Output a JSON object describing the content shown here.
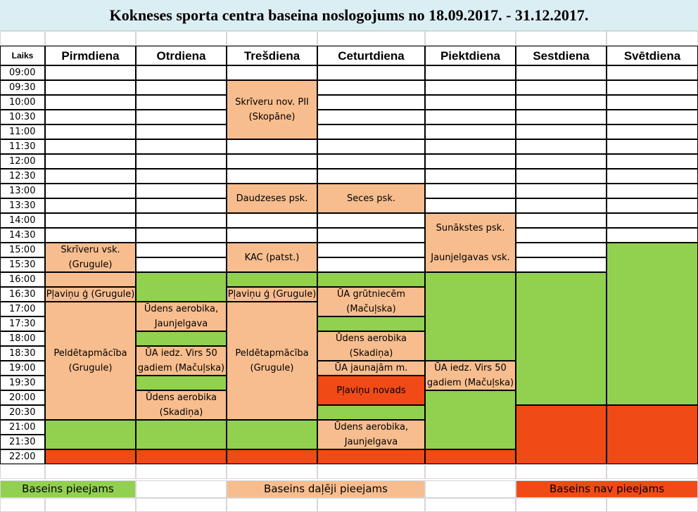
{
  "title": "Kokneses sporta centra baseina noslogojums no 18.09.2017. - 31.12.2017.",
  "colors": {
    "available": "#92d050",
    "partial": "#f8bd8e",
    "unavailable": "#f04a16",
    "title_bg": "#dbeef3"
  },
  "header": {
    "time_label": "Laiks",
    "days": [
      "Pirmdiena",
      "Otrdiena",
      "Trešdiena",
      "Ceturtdiena",
      "Piektdiena",
      "Sestdiena",
      "Svētdiena"
    ]
  },
  "times": [
    "09:00",
    "09:30",
    "10:00",
    "10:30",
    "11:00",
    "11:30",
    "12:00",
    "12:30",
    "13:00",
    "13:30",
    "14:00",
    "14:30",
    "15:00",
    "15:30",
    "16:00",
    "16:30",
    "17:00",
    "17:30",
    "18:00",
    "18:30",
    "19:00",
    "19:30",
    "20:00",
    "20:30",
    "21:00",
    "21:30",
    "22:00"
  ],
  "events": {
    "mon": [
      {
        "start": 12,
        "span": 2,
        "status": "partial",
        "text": "Skrīveru vsk.\n(Grugule)"
      },
      {
        "start": 14,
        "span": 1,
        "status": "partial",
        "text": ""
      },
      {
        "start": 15,
        "span": 1,
        "status": "partial",
        "text": "Pļaviņu ģ (Grugule)"
      },
      {
        "start": 16,
        "span": 8,
        "status": "partial",
        "text": "Peldētapmācība\n(Grugule)"
      },
      {
        "start": 24,
        "span": 2,
        "status": "available",
        "text": ""
      },
      {
        "start": 26,
        "span": 1,
        "status": "unavailable",
        "text": ""
      }
    ],
    "tue": [
      {
        "start": 14,
        "span": 2,
        "status": "available",
        "text": ""
      },
      {
        "start": 16,
        "span": 2,
        "status": "partial",
        "text": "Ūdens aerobika,\nJaunjelgava"
      },
      {
        "start": 18,
        "span": 1,
        "status": "available",
        "text": ""
      },
      {
        "start": 19,
        "span": 2,
        "status": "partial",
        "text": "ŪA iedz. Virs 50\ngadiem (Mačuļska)"
      },
      {
        "start": 21,
        "span": 1,
        "status": "available",
        "text": ""
      },
      {
        "start": 22,
        "span": 2,
        "status": "partial",
        "text": "Ūdens aerobika\n(Skadiņa)"
      },
      {
        "start": 24,
        "span": 2,
        "status": "available",
        "text": ""
      },
      {
        "start": 26,
        "span": 1,
        "status": "unavailable",
        "text": ""
      }
    ],
    "wed": [
      {
        "start": 1,
        "span": 4,
        "status": "partial",
        "text": "Skrīveru nov. PII\n(Skopāne)"
      },
      {
        "start": 8,
        "span": 2,
        "status": "partial",
        "text": "Daudzeses psk."
      },
      {
        "start": 12,
        "span": 2,
        "status": "partial",
        "text": "KAC (patst.)"
      },
      {
        "start": 14,
        "span": 1,
        "status": "available",
        "text": ""
      },
      {
        "start": 15,
        "span": 1,
        "status": "partial",
        "text": "Pļaviņu ģ (Grugule)"
      },
      {
        "start": 16,
        "span": 8,
        "status": "partial",
        "text": "Peldētapmācība\n(Grugule)"
      },
      {
        "start": 24,
        "span": 2,
        "status": "available",
        "text": ""
      },
      {
        "start": 26,
        "span": 1,
        "status": "unavailable",
        "text": ""
      }
    ],
    "thu": [
      {
        "start": 8,
        "span": 2,
        "status": "partial",
        "text": "Seces psk."
      },
      {
        "start": 14,
        "span": 1,
        "status": "available",
        "text": ""
      },
      {
        "start": 15,
        "span": 2,
        "status": "partial",
        "text": "ŪA grūtniecēm\n(Mačuļska)"
      },
      {
        "start": 17,
        "span": 1,
        "status": "available",
        "text": ""
      },
      {
        "start": 18,
        "span": 2,
        "status": "partial",
        "text": "Ūdens aerobika\n(Skadiņa)"
      },
      {
        "start": 20,
        "span": 1,
        "status": "partial",
        "text": "ŪA jaunajām m."
      },
      {
        "start": 21,
        "span": 2,
        "status": "unavailable",
        "text": "Pļaviņu novads"
      },
      {
        "start": 23,
        "span": 1,
        "status": "available",
        "text": ""
      },
      {
        "start": 24,
        "span": 2,
        "status": "partial",
        "text": "Ūdens aerobika,\nJaunjelgava"
      },
      {
        "start": 26,
        "span": 1,
        "status": "unavailable",
        "text": ""
      }
    ],
    "fri": [
      {
        "start": 10,
        "span": 4,
        "status": "partial",
        "text": "Sunākstes psk.\n\nJaunjelgavas vsk."
      },
      {
        "start": 14,
        "span": 6,
        "status": "available",
        "text": ""
      },
      {
        "start": 20,
        "span": 2,
        "status": "partial",
        "text": "ŪA iedz. Virs 50\ngadiem (Mačuļska)"
      },
      {
        "start": 22,
        "span": 4,
        "status": "available",
        "text": ""
      },
      {
        "start": 26,
        "span": 1,
        "status": "unavailable",
        "text": ""
      }
    ],
    "sat": [
      {
        "start": 14,
        "span": 9,
        "status": "available",
        "text": ""
      },
      {
        "start": 23,
        "span": 4,
        "status": "unavailable",
        "text": ""
      }
    ],
    "sun": [
      {
        "start": 12,
        "span": 11,
        "status": "available",
        "text": ""
      },
      {
        "start": 23,
        "span": 4,
        "status": "unavailable",
        "text": ""
      }
    ]
  },
  "legend": [
    {
      "status": "available",
      "label": "Baseins pieejams"
    },
    {
      "status": "partial",
      "label": "Baseins daļēji pieejams"
    },
    {
      "status": "unavailable",
      "label": "Baseins nav pieejams"
    }
  ]
}
